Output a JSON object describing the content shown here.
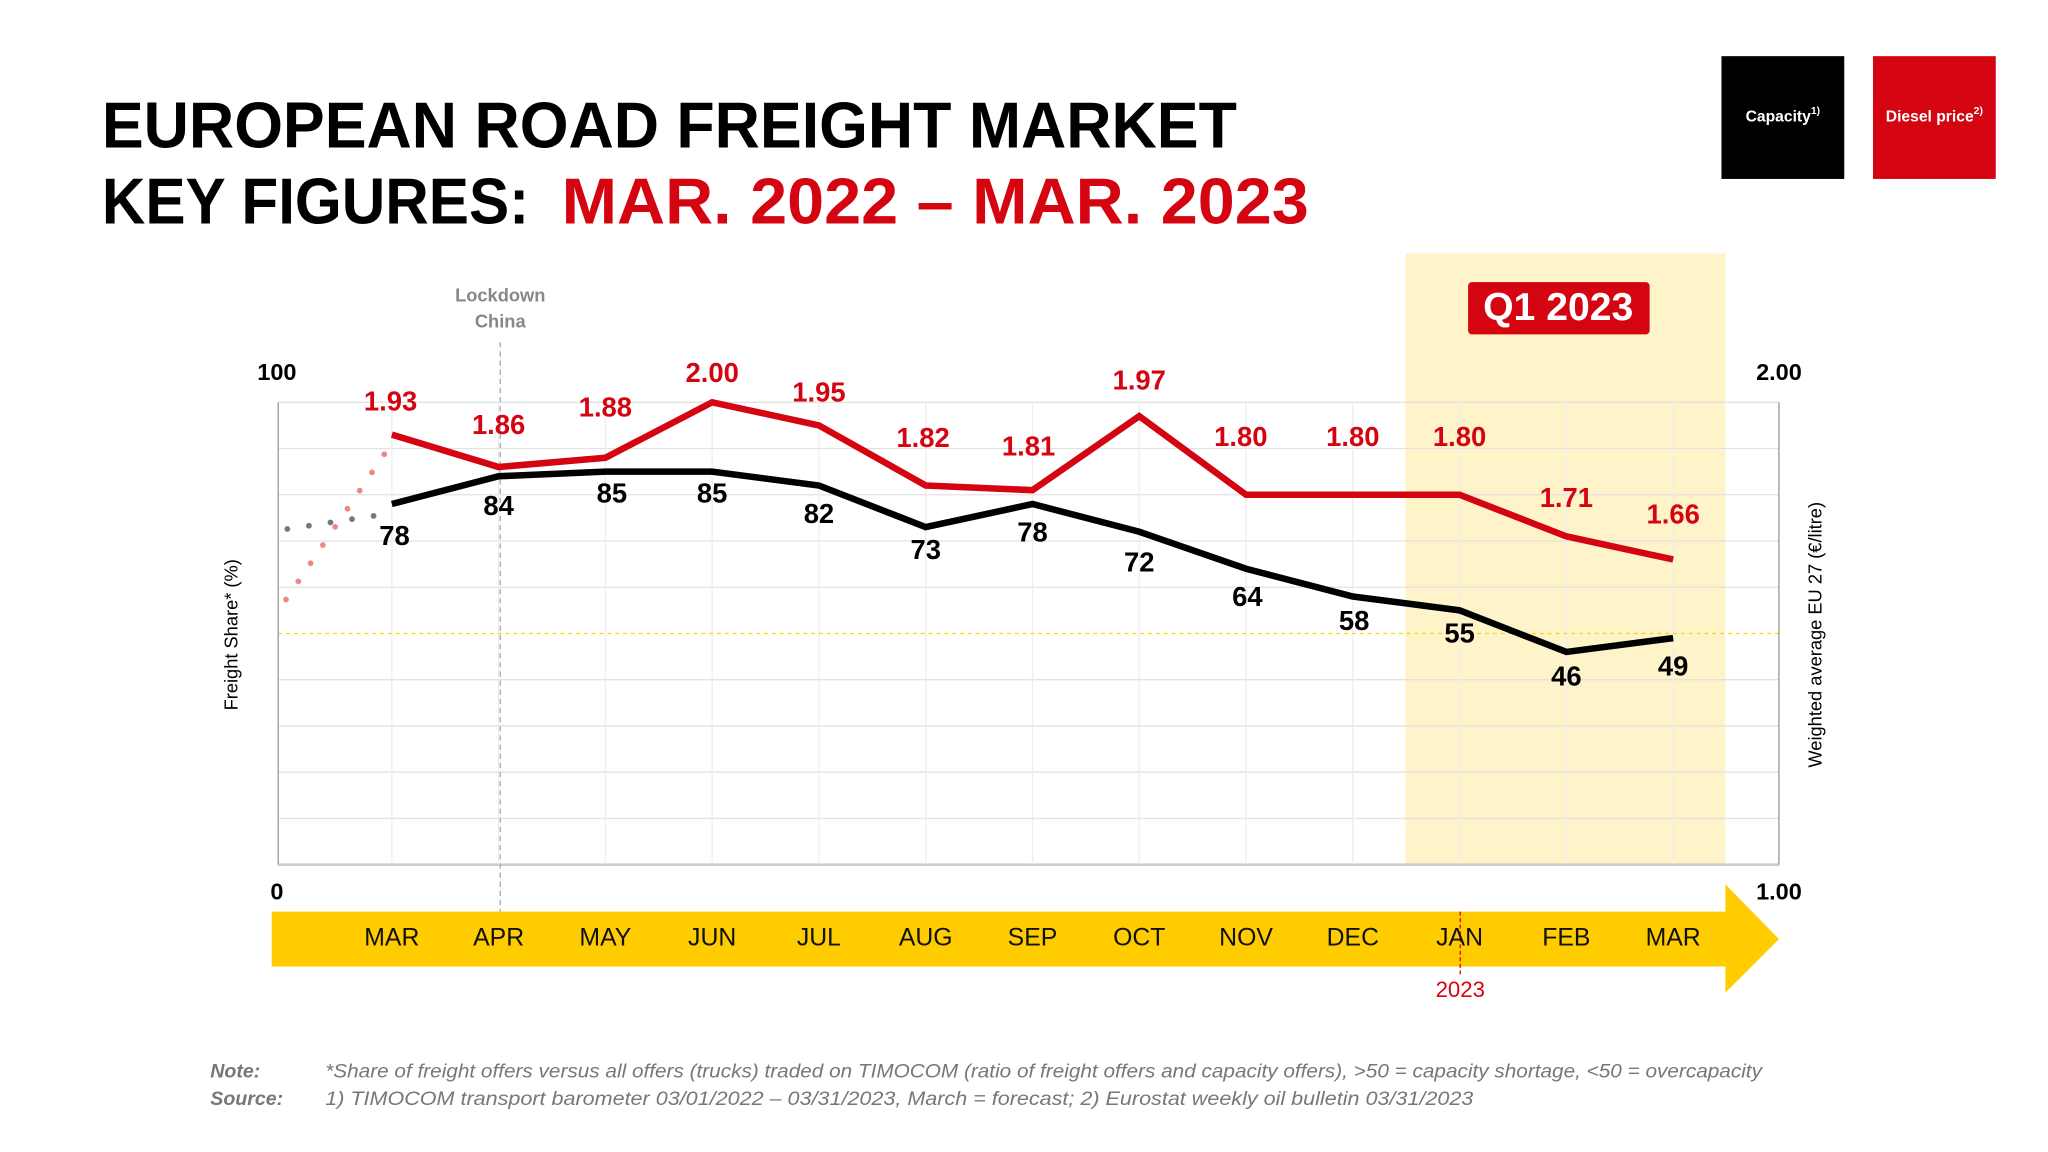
{
  "title": {
    "line1": "EUROPEAN ROAD FREIGHT MARKET",
    "line2_prefix": "KEY FIGURES: ",
    "line2_highlight": "MAR. 2022 – MAR. 2023"
  },
  "legend": [
    {
      "label": "Capacity",
      "sup": "1)",
      "color": "#000000"
    },
    {
      "label": "Diesel price",
      "sup": "2)",
      "color": "#D40511"
    }
  ],
  "highlight": {
    "label": "Q1 2023",
    "color": "#FFF4C9",
    "badge_color": "#D40511"
  },
  "annotation": {
    "line1": "Lockdown",
    "line2": "China",
    "month": "APR"
  },
  "year_marker": {
    "label": "2023",
    "month": "JAN"
  },
  "chart_data": {
    "type": "line",
    "categories": [
      "MAR",
      "APR",
      "MAY",
      "JUN",
      "JUL",
      "AUG",
      "SEP",
      "OCT",
      "NOV",
      "DEC",
      "JAN",
      "FEB",
      "MAR"
    ],
    "series": [
      {
        "name": "Capacity",
        "axis": "left",
        "color": "#000000",
        "values": [
          78,
          84,
          85,
          85,
          82,
          73,
          78,
          72,
          64,
          58,
          55,
          46,
          49
        ]
      },
      {
        "name": "Diesel price",
        "axis": "right",
        "color": "#D40511",
        "values": [
          1.93,
          1.86,
          1.88,
          2.0,
          1.95,
          1.82,
          1.81,
          1.97,
          1.8,
          1.8,
          1.8,
          1.71,
          1.66
        ]
      }
    ],
    "left_axis": {
      "label": "Freight Share* (%)",
      "min": 0,
      "max": 100,
      "min_label": "0",
      "max_label": "100"
    },
    "right_axis": {
      "label": "Weighted average EU 27 (€/litre)",
      "min": 1.0,
      "max": 2.0,
      "min_label": "1.00",
      "max_label": "2.00"
    },
    "reference_line": {
      "value": 50,
      "color": "#F5D800"
    },
    "grid": true
  },
  "notes": {
    "note_label": "Note:",
    "note_text": "*Share of freight offers versus all offers (trucks) traded on TIMOCOM (ratio of freight offers and capacity offers), >50 = capacity shortage, <50 = overcapacity",
    "source_label": "Source:",
    "source_text": "1) TIMOCOM transport barometer 03/01/2022 – 03/31/2023, March = forecast; 2) Eurostat weekly oil bulletin 03/31/2023"
  },
  "colors": {
    "red": "#D40511",
    "yellow": "#FFCC00",
    "black": "#000000"
  }
}
